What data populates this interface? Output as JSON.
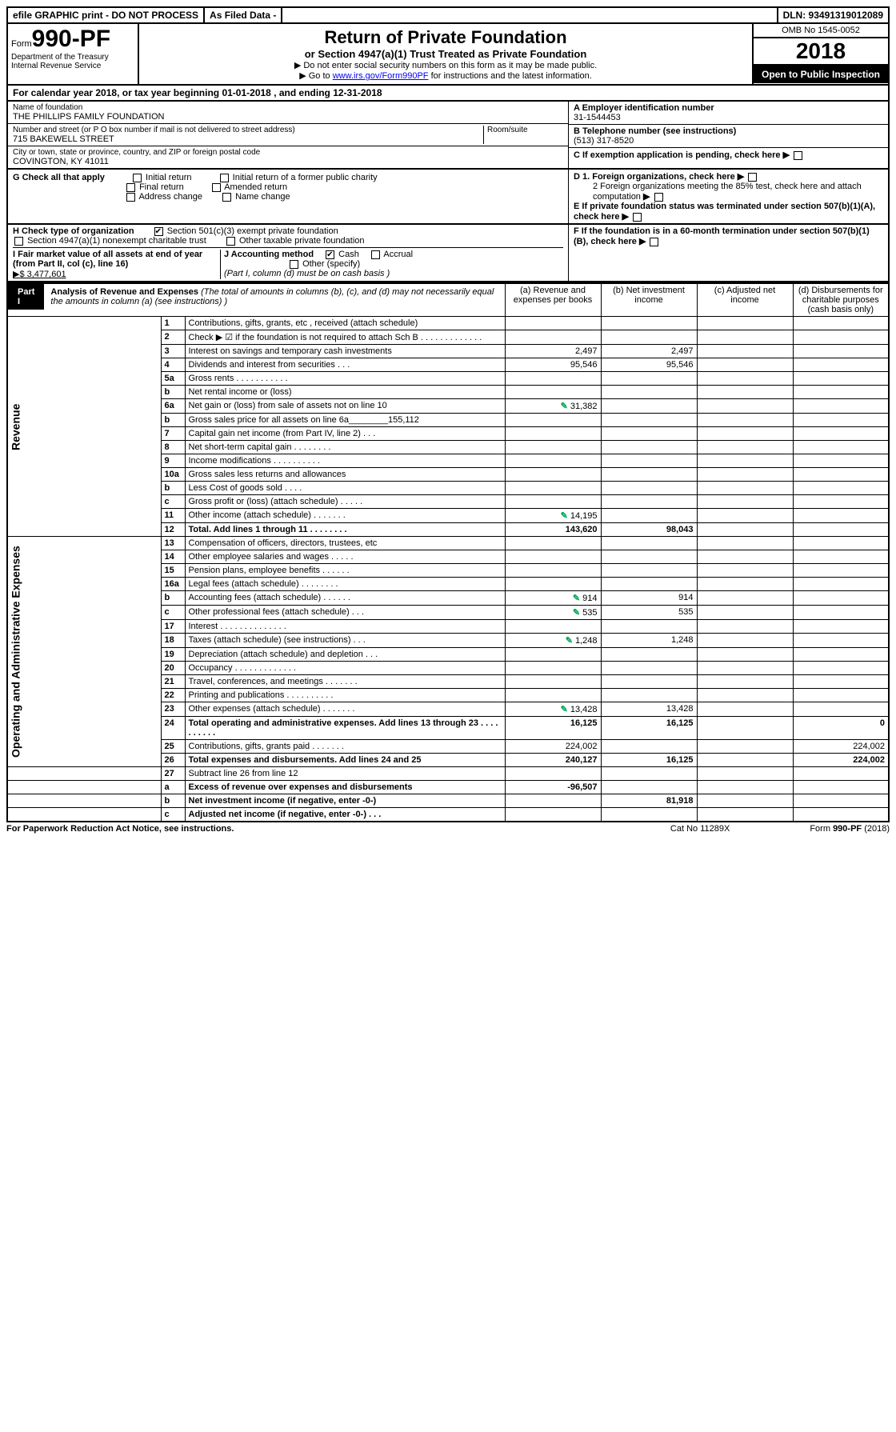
{
  "topbar": {
    "efile": "efile GRAPHIC print - DO NOT PROCESS",
    "asfiled": "As Filed Data -",
    "dln": "DLN: 93491319012089"
  },
  "header": {
    "form_prefix": "Form",
    "form_num": "990-PF",
    "dept1": "Department of the Treasury",
    "dept2": "Internal Revenue Service",
    "title": "Return of Private Foundation",
    "subtitle": "or Section 4947(a)(1) Trust Treated as Private Foundation",
    "instr1": "▶ Do not enter social security numbers on this form as it may be made public.",
    "instr2_pre": "▶ Go to ",
    "instr2_link": "www.irs.gov/Form990PF",
    "instr2_post": " for instructions and the latest information.",
    "omb": "OMB No 1545-0052",
    "year": "2018",
    "open_pub": "Open to Public Inspection"
  },
  "cal_year": {
    "pre": "For calendar year 2018, or tax year beginning ",
    "begin": "01-01-2018",
    "mid": " , and ending ",
    "end": "12-31-2018"
  },
  "info": {
    "name_label": "Name of foundation",
    "name": "THE PHILLIPS FAMILY FOUNDATION",
    "addr_label": "Number and street (or P O  box number if mail is not delivered to street address)",
    "addr": "715 BAKEWELL STREET",
    "room_label": "Room/suite",
    "city_label": "City or town, state or province, country, and ZIP or foreign postal code",
    "city": "COVINGTON, KY  41011",
    "a_label": "A Employer identification number",
    "a_val": "31-1544453",
    "b_label": "B Telephone number (see instructions)",
    "b_val": "(513) 317-8520",
    "c_label": "C If exemption application is pending, check here",
    "d1": "D 1. Foreign organizations, check here",
    "d2": "2 Foreign organizations meeting the 85% test, check here and attach computation",
    "e": "E  If private foundation status was terminated under section 507(b)(1)(A), check here",
    "f": "F  If the foundation is in a 60-month termination under section 507(b)(1)(B), check here"
  },
  "g": {
    "label": "G Check all that apply",
    "opts": [
      "Initial return",
      "Initial return of a former public charity",
      "Final return",
      "Amended return",
      "Address change",
      "Name change"
    ]
  },
  "h": {
    "label": "H Check type of organization",
    "opt1": "Section 501(c)(3) exempt private foundation",
    "opt2": "Section 4947(a)(1) nonexempt charitable trust",
    "opt3": "Other taxable private foundation"
  },
  "i": {
    "label": "I Fair market value of all assets at end of year (from Part II, col  (c), line 16)",
    "val": "▶$  3,477,601"
  },
  "j": {
    "label": "J Accounting method",
    "cash": "Cash",
    "accrual": "Accrual",
    "other": "Other (specify)",
    "note": "(Part I, column (d) must be on cash basis )"
  },
  "part1": {
    "label": "Part I",
    "title": "Analysis of Revenue and Expenses",
    "title_note": " (The total of amounts in columns (b), (c), and (d) may not necessarily equal the amounts in column (a) (see instructions) )",
    "col_a": "(a) Revenue and expenses per books",
    "col_b": "(b) Net investment income",
    "col_c": "(c) Adjusted net income",
    "col_d": "(d) Disbursements for charitable purposes (cash basis only)",
    "side_rev": "Revenue",
    "side_exp": "Operating and Administrative Expenses"
  },
  "rows": [
    {
      "n": "1",
      "d": "Contributions, gifts, grants, etc , received (attach schedule)"
    },
    {
      "n": "2",
      "d": "Check ▶ ☑ if the foundation is not required to attach Sch B  .  .  .  .  .  .  .  .  .  .  .  .  ."
    },
    {
      "n": "3",
      "d": "Interest on savings and temporary cash investments",
      "a": "2,497",
      "b": "2,497"
    },
    {
      "n": "4",
      "d": "Dividends and interest from securities   .   .   .",
      "a": "95,546",
      "b": "95,546"
    },
    {
      "n": "5a",
      "d": "Gross rents   .   .   .   .   .   .   .   .   .   .   ."
    },
    {
      "n": "b",
      "d": "Net rental income or (loss)"
    },
    {
      "n": "6a",
      "d": "Net gain or (loss) from sale of assets not on line 10",
      "a": "31,382",
      "icon": true
    },
    {
      "n": "b",
      "d": "Gross sales price for all assets on line 6a________155,112"
    },
    {
      "n": "7",
      "d": "Capital gain net income (from Part IV, line 2)   .   .   ."
    },
    {
      "n": "8",
      "d": "Net short-term capital gain   .   .   .   .   .   .   .   ."
    },
    {
      "n": "9",
      "d": "Income modifications   .   .   .   .   .   .   .   .   .   ."
    },
    {
      "n": "10a",
      "d": "Gross sales less returns and allowances"
    },
    {
      "n": "b",
      "d": "Less  Cost of goods sold    .   .   .   ."
    },
    {
      "n": "c",
      "d": "Gross profit or (loss) (attach schedule)    .   .   .   .   ."
    },
    {
      "n": "11",
      "d": "Other income (attach schedule)    .   .   .   .   .   .   .",
      "a": "14,195",
      "icon": true
    },
    {
      "n": "12",
      "d": "Total. Add lines 1 through 11   .   .   .   .   .   .   .   .",
      "a": "143,620",
      "b": "98,043",
      "bold": true
    }
  ],
  "exp_rows": [
    {
      "n": "13",
      "d": "Compensation of officers, directors, trustees, etc"
    },
    {
      "n": "14",
      "d": "Other employee salaries and wages    .   .   .   .   ."
    },
    {
      "n": "15",
      "d": "Pension plans, employee benefits   .   .   .   .   .   ."
    },
    {
      "n": "16a",
      "d": "Legal fees (attach schedule)   .   .   .   .   .   .   .   ."
    },
    {
      "n": "b",
      "d": "Accounting fees (attach schedule)   .   .   .   .   .   .",
      "a": "914",
      "b": "914",
      "icon": true
    },
    {
      "n": "c",
      "d": "Other professional fees (attach schedule)    .   .   .",
      "a": "535",
      "b": "535",
      "icon": true
    },
    {
      "n": "17",
      "d": "Interest   .   .   .   .   .   .   .   .   .   .   .   .   .   ."
    },
    {
      "n": "18",
      "d": "Taxes (attach schedule) (see instructions)     .   .   .",
      "a": "1,248",
      "b": "1,248",
      "icon": true
    },
    {
      "n": "19",
      "d": "Depreciation (attach schedule) and depletion   .   .   ."
    },
    {
      "n": "20",
      "d": "Occupancy    .   .   .   .   .   .   .   .   .   .   .   .   ."
    },
    {
      "n": "21",
      "d": "Travel, conferences, and meetings   .   .   .   .   .   .   ."
    },
    {
      "n": "22",
      "d": "Printing and publications   .   .   .   .   .   .   .   .   .   ."
    },
    {
      "n": "23",
      "d": "Other expenses (attach schedule)   .   .   .   .   .   .   .",
      "a": "13,428",
      "b": "13,428",
      "icon": true
    },
    {
      "n": "24",
      "d": "Total operating and administrative expenses. Add lines 13 through 23   .   .   .   .   .   .   .   .   .   .",
      "a": "16,125",
      "b": "16,125",
      "dv": "0",
      "bold": true
    },
    {
      "n": "25",
      "d": "Contributions, gifts, grants paid   .   .   .   .   .   .   .",
      "a": "224,002",
      "dv": "224,002"
    },
    {
      "n": "26",
      "d": "Total expenses and disbursements. Add lines 24 and 25",
      "a": "240,127",
      "b": "16,125",
      "dv": "224,002",
      "bold": true
    }
  ],
  "bottom_rows": [
    {
      "n": "27",
      "d": "Subtract line 26 from line 12"
    },
    {
      "n": "a",
      "d": "Excess of revenue over expenses and disbursements",
      "a": "-96,507",
      "bold": true
    },
    {
      "n": "b",
      "d": "Net investment income (if negative, enter -0-)",
      "b": "81,918",
      "bold": true
    },
    {
      "n": "c",
      "d": "Adjusted net income (if negative, enter -0-)   .   .   .",
      "bold": true
    }
  ],
  "footer": {
    "left": "For Paperwork Reduction Act Notice, see instructions.",
    "mid": "Cat No  11289X",
    "right": "Form 990-PF (2018)"
  }
}
